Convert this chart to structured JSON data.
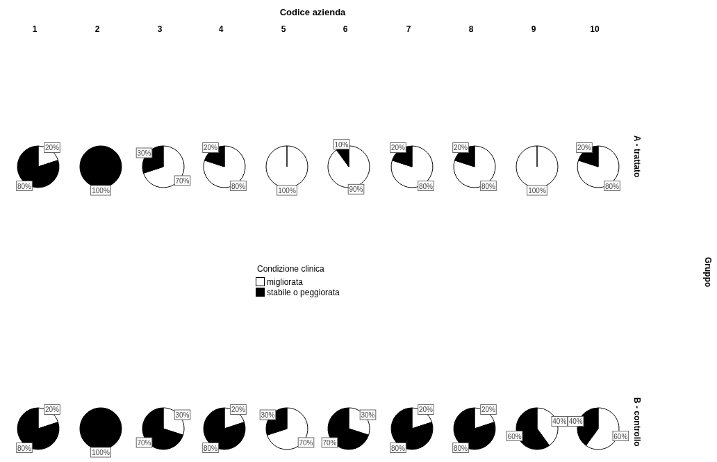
{
  "chart_data": [
    {
      "type": "other",
      "title": "Codice azienda",
      "y2label": "Gruppo"
    },
    {
      "type": "pie",
      "title": "1",
      "categories": [
        null,
        null
      ],
      "values": [
        20,
        80
      ],
      "colors": [
        "#ffffff",
        "#000000"
      ],
      "value_labels": [
        "20%",
        "80%"
      ]
    },
    {
      "type": "pie",
      "title": "2",
      "categories": [
        null,
        null
      ],
      "values": [
        0,
        100
      ],
      "colors": [
        "#ffffff",
        "#000000"
      ],
      "value_labels": [
        null,
        "100%"
      ]
    },
    {
      "type": "pie",
      "title": "3",
      "categories": [
        null,
        null
      ],
      "values": [
        70,
        30
      ],
      "colors": [
        "#ffffff",
        "#000000"
      ],
      "value_labels": [
        "70%",
        "30%"
      ]
    },
    {
      "type": "pie",
      "title": "4",
      "categories": [
        null,
        null
      ],
      "values": [
        80,
        20
      ],
      "colors": [
        "#ffffff",
        "#000000"
      ],
      "value_labels": [
        "80%",
        "20%"
      ]
    },
    {
      "type": "pie",
      "title": "5",
      "categories": [
        "migliorata",
        "stabile o peggiorata"
      ],
      "values": [
        100,
        0
      ],
      "colors": [
        "#ffffff",
        "#000000"
      ],
      "value_labels": [
        "100%",
        null
      ],
      "legend": "bottom",
      "legend_title": "Condizione clinica"
    },
    {
      "type": "pie",
      "title": "6",
      "categories": [
        null,
        null
      ],
      "values": [
        90,
        10
      ],
      "colors": [
        "#ffffff",
        "#000000"
      ],
      "value_labels": [
        "90%",
        "10%"
      ]
    },
    {
      "type": "pie",
      "title": "7",
      "categories": [
        null,
        null
      ],
      "values": [
        80,
        20
      ],
      "colors": [
        "#ffffff",
        "#000000"
      ],
      "value_labels": [
        "80%",
        "20%"
      ]
    },
    {
      "type": "pie",
      "title": "8",
      "categories": [
        null,
        null
      ],
      "values": [
        80,
        20
      ],
      "colors": [
        "#ffffff",
        "#000000"
      ],
      "value_labels": [
        "80%",
        "20%"
      ]
    },
    {
      "type": "pie",
      "title": "9",
      "categories": [
        null,
        null
      ],
      "values": [
        100,
        0
      ],
      "colors": [
        "#ffffff",
        "#000000"
      ],
      "value_labels": [
        "100%",
        null
      ]
    },
    {
      "type": "pie",
      "title": "10",
      "y2label": "A - trattato",
      "categories": [
        null,
        null
      ],
      "values": [
        80,
        20
      ],
      "colors": [
        "#ffffff",
        "#000000"
      ],
      "value_labels": [
        "80%",
        "20%"
      ]
    },
    {
      "type": "pie",
      "categories": [
        null,
        null
      ],
      "values": [
        20,
        80
      ],
      "colors": [
        "#ffffff",
        "#000000"
      ],
      "value_labels": [
        "20%",
        "80%"
      ]
    },
    {
      "type": "pie",
      "categories": [
        null,
        null
      ],
      "values": [
        0,
        100
      ],
      "colors": [
        "#ffffff",
        "#000000"
      ],
      "value_labels": [
        null,
        "100%"
      ]
    },
    {
      "type": "pie",
      "categories": [
        null,
        null
      ],
      "values": [
        30,
        70
      ],
      "colors": [
        "#ffffff",
        "#000000"
      ],
      "value_labels": [
        "30%",
        "70%"
      ]
    },
    {
      "type": "pie",
      "categories": [
        null,
        null
      ],
      "values": [
        20,
        80
      ],
      "colors": [
        "#ffffff",
        "#000000"
      ],
      "value_labels": [
        "20%",
        "80%"
      ]
    },
    {
      "type": "pie",
      "categories": [
        null,
        null
      ],
      "values": [
        70,
        30
      ],
      "colors": [
        "#ffffff",
        "#000000"
      ],
      "value_labels": [
        "70%",
        "30%"
      ]
    },
    {
      "type": "pie",
      "categories": [
        null,
        null
      ],
      "values": [
        30,
        70
      ],
      "colors": [
        "#ffffff",
        "#000000"
      ],
      "value_labels": [
        "30%",
        "70%"
      ]
    },
    {
      "type": "pie",
      "categories": [
        null,
        null
      ],
      "values": [
        20,
        80
      ],
      "colors": [
        "#ffffff",
        "#000000"
      ],
      "value_labels": [
        "20%",
        "80%"
      ]
    },
    {
      "type": "pie",
      "categories": [
        null,
        null
      ],
      "values": [
        20,
        80
      ],
      "colors": [
        "#ffffff",
        "#000000"
      ],
      "value_labels": [
        "20%",
        "80%"
      ]
    },
    {
      "type": "pie",
      "categories": [
        null,
        null
      ],
      "values": [
        40,
        60
      ],
      "colors": [
        "#ffffff",
        "#000000"
      ],
      "value_labels": [
        "40%",
        "60%"
      ]
    },
    {
      "type": "pie",
      "y2label": "B - controllo",
      "categories": [
        null,
        null
      ],
      "values": [
        60,
        40
      ],
      "colors": [
        "#ffffff",
        "#000000"
      ],
      "value_labels": [
        "60%",
        "40%"
      ]
    }
  ]
}
